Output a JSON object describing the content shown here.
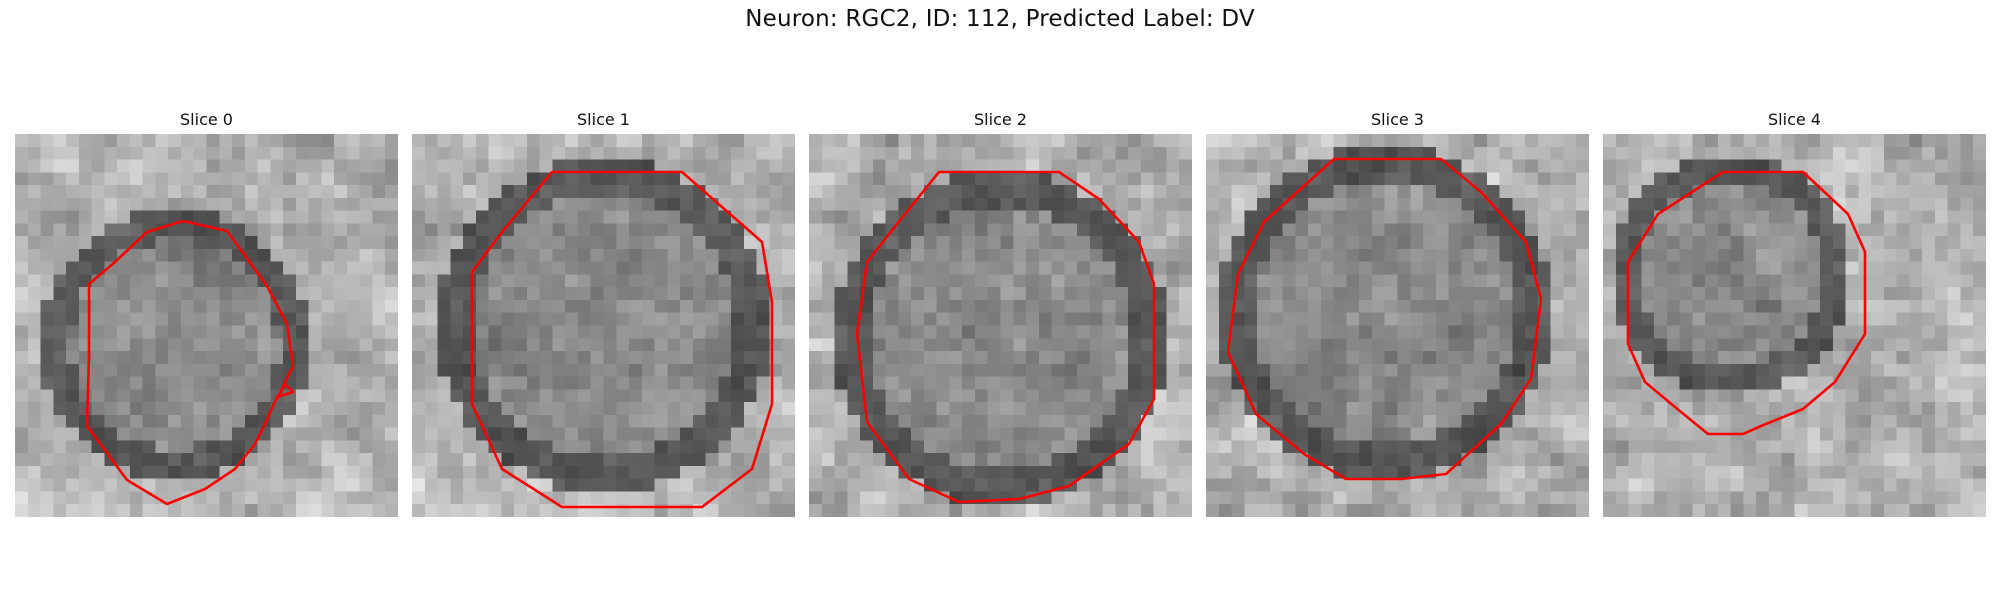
{
  "figure": {
    "title": "Neuron: RGC2, ID: 112, Predicted Label: DV"
  },
  "contour_color": "#ff0000",
  "colormap": "gray",
  "panels": [
    {
      "title": "Slice 0"
    },
    {
      "title": "Slice 1"
    },
    {
      "title": "Slice 2"
    },
    {
      "title": "Slice 3"
    },
    {
      "title": "Slice 4"
    }
  ]
}
